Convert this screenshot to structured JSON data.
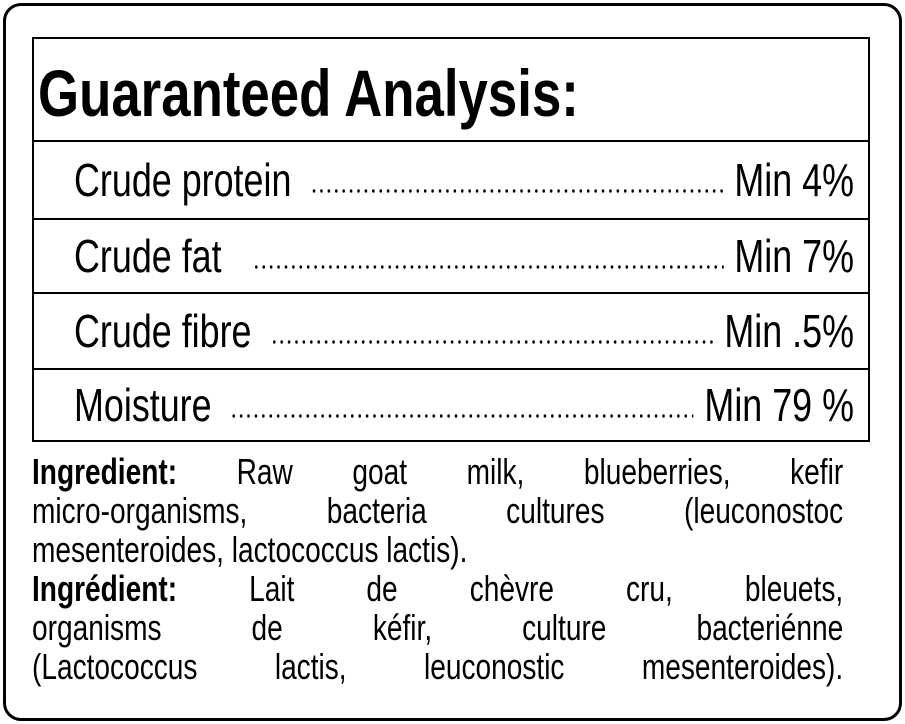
{
  "title": "Guaranteed Analysis:",
  "rows": [
    {
      "label": "Crude protein",
      "value": "Min 4%"
    },
    {
      "label": "Crude fat",
      "value": "Min 7%"
    },
    {
      "label": "Crude fibre",
      "value": "Min .5%"
    },
    {
      "label": "Moisture",
      "value": "Min 79 %"
    }
  ],
  "ingredients_en": {
    "label": "Ingredient:",
    "lines": [
      "Raw goat milk, blueberries, kefir",
      "micro-organisms, bacteria cultures (leuconostoc",
      "mesenteroides, lactococcus lactis)."
    ]
  },
  "ingredients_fr": {
    "label": "Ingrédient:",
    "lines": [
      "Lait de chèvre cru, bleuets,",
      "organisms de kéfir, culture bacteriénne",
      "(Lactococcus lactis, leuconostic mesenteroides)."
    ]
  }
}
